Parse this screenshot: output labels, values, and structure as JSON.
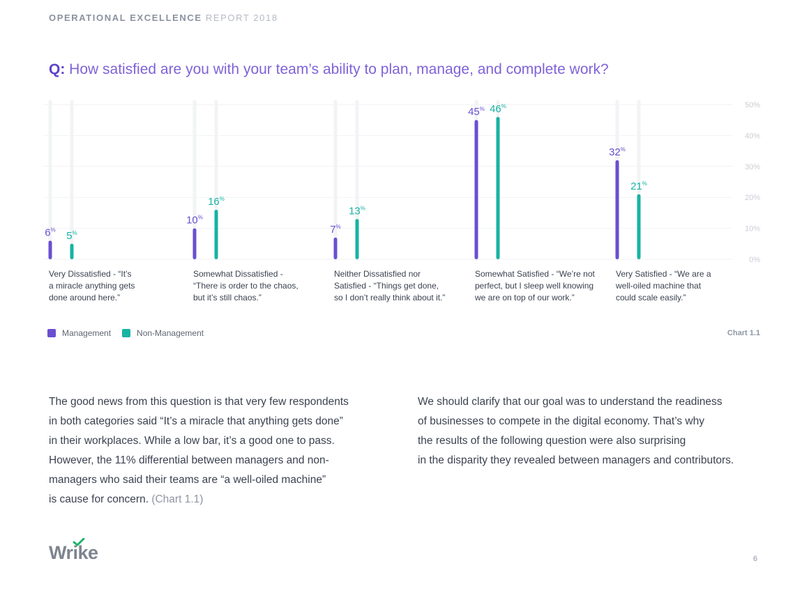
{
  "header": {
    "bold": "OPERATIONAL EXCELLENCE",
    "light": "REPORT 2018"
  },
  "question": {
    "prefix": "Q:",
    "text": "How satisfied are you with your team’s ability to plan, manage, and complete work?"
  },
  "chart_data": {
    "type": "bar",
    "categories": [
      [
        "Very Dissatisfied - “It’s",
        "a miracle anything gets",
        "done around here.”"
      ],
      [
        "Somewhat Dissatisfied -",
        "“There is order to the chaos,",
        "but it’s still chaos.”"
      ],
      [
        "Neither Dissatisfied nor",
        "Satisfied - “Things get done,",
        "so I don’t really think about it.”"
      ],
      [
        "Somewhat Satisfied - “We’re not",
        "perfect, but I sleep well knowing",
        "we are on top of our work.”"
      ],
      [
        "Very Satisfied - “We are a",
        "well-oiled machine that",
        "could scale easily.”"
      ]
    ],
    "series": [
      {
        "name": "Management",
        "values": [
          6,
          10,
          7,
          45,
          32
        ],
        "color": "#6a4fd0"
      },
      {
        "name": "Non-Management",
        "values": [
          5,
          16,
          13,
          46,
          21
        ],
        "color": "#17b3a3"
      }
    ],
    "value_suffix": "%",
    "ylim": [
      0,
      50
    ],
    "yticks": [
      "0%",
      "10%",
      "20%",
      "30%",
      "40%",
      "50%"
    ],
    "grid": true,
    "legend_position": "bottom-left"
  },
  "chart_id": "Chart 1.1",
  "body_left": {
    "lines": [
      "The good news from this question is that very few respondents",
      "in both categories said “It’s a miracle that anything gets done”",
      "in their workplaces. While a low bar, it’s a good one to pass.",
      "However, the 11% differential between managers and non-",
      "managers who said their teams are “a well-oiled machine”",
      "is cause for concern."
    ],
    "ref": "(Chart 1.1)"
  },
  "body_right": {
    "lines": [
      "We should clarify that our goal was to understand the readiness",
      "of businesses to compete in the digital economy. That’s why",
      "the results of the following question were also surprising",
      "in the disparity they revealed between managers and contributors."
    ]
  },
  "logo": "Wrike",
  "page_number": "6"
}
